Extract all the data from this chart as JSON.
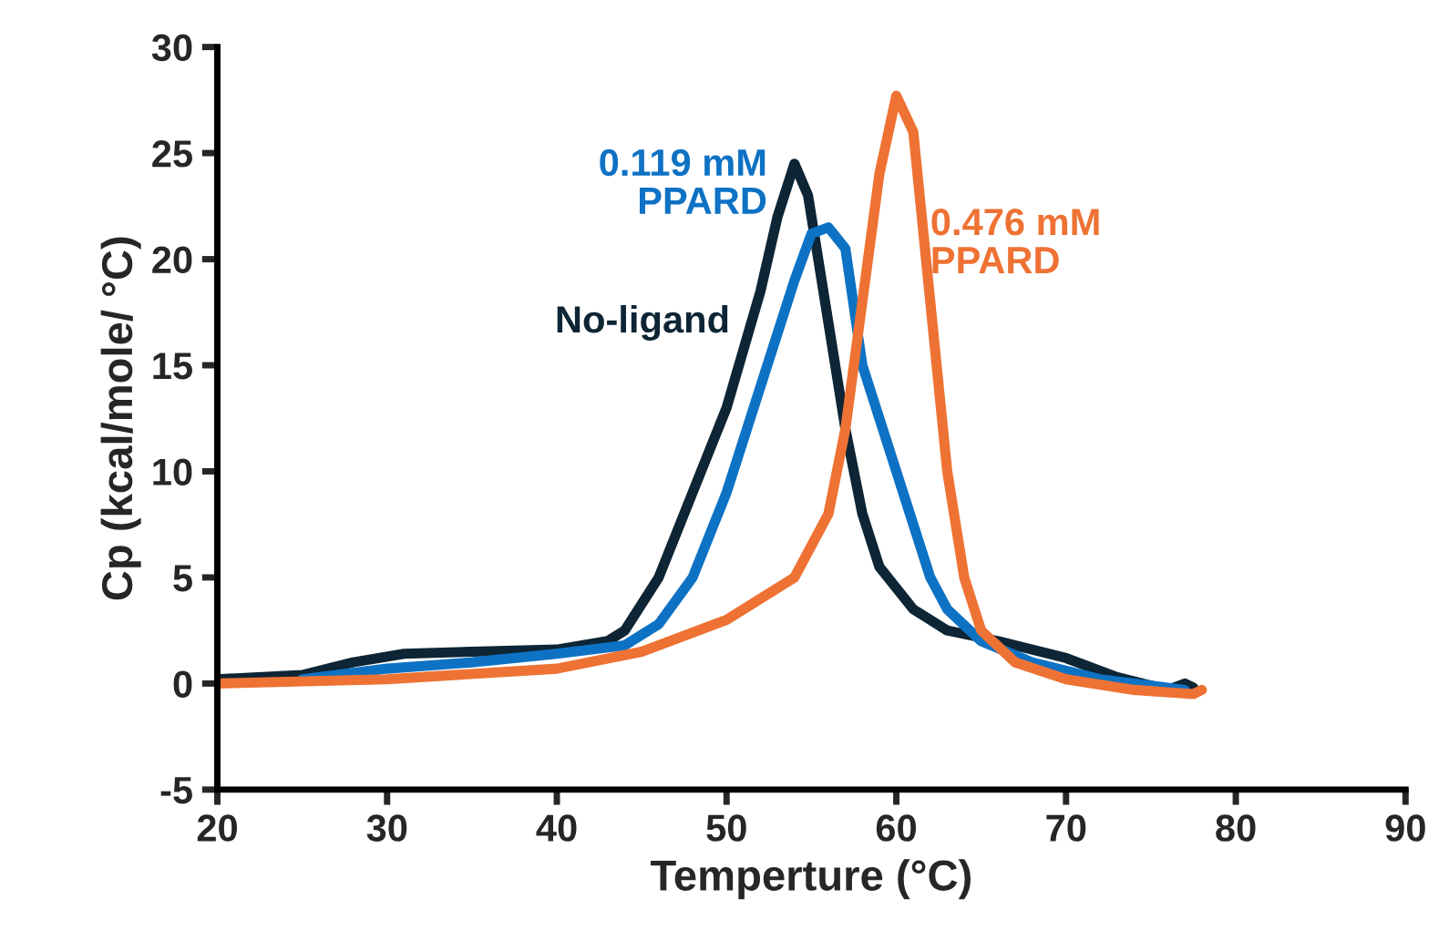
{
  "chart_data": {
    "type": "line",
    "xlabel": "Temperture (°C)",
    "ylabel": "Cp (kcal/mole/ °C)",
    "xlim": [
      20,
      90
    ],
    "xticks": [
      20,
      30,
      40,
      50,
      60,
      70,
      80,
      90
    ],
    "ylim": [
      -5,
      30
    ],
    "yticks": [
      -5,
      0,
      5,
      10,
      15,
      20,
      25,
      30
    ],
    "grid": false,
    "legend": false,
    "marker": "none",
    "line_style": "solid",
    "series": [
      {
        "name": "No-ligand",
        "color": "#0d2535",
        "x": [
          20,
          25,
          28,
          31,
          35,
          40,
          43,
          44,
          46,
          48,
          50,
          52,
          53,
          54,
          54.8,
          56,
          57,
          58,
          59,
          61,
          63,
          66,
          70,
          73,
          76,
          77,
          77.5
        ],
        "values": [
          0.2,
          0.4,
          1.0,
          1.4,
          1.5,
          1.6,
          2.0,
          2.5,
          5,
          9,
          13,
          18.5,
          22,
          24.5,
          23,
          17,
          12,
          8,
          5.5,
          3.5,
          2.5,
          2,
          1.2,
          0.3,
          -0.3,
          0,
          -0.2
        ]
      },
      {
        "name": "0.119 mM\nPPARD",
        "color": "#0e72c4",
        "x": [
          25,
          30,
          35,
          40,
          44,
          46,
          48,
          50,
          52,
          54,
          55,
          56,
          57,
          58,
          60,
          62,
          63,
          65,
          68,
          72,
          77
        ],
        "values": [
          0.2,
          0.7,
          1.0,
          1.4,
          1.8,
          2.8,
          5,
          9,
          14,
          19,
          21.2,
          21.5,
          20.5,
          15,
          10,
          5,
          3.5,
          2,
          1,
          0.2,
          -0.3
        ]
      },
      {
        "name": "0.476 mM\nPPARD",
        "color": "#ee7233",
        "x": [
          20,
          30,
          40,
          45,
          50,
          54,
          56,
          57,
          58,
          59,
          60,
          61,
          62,
          63,
          64,
          65,
          67,
          70,
          74,
          77.5,
          78
        ],
        "values": [
          0,
          0.2,
          0.7,
          1.5,
          3,
          5,
          8,
          12,
          18,
          24,
          27.7,
          26,
          18,
          10,
          5,
          2.5,
          1,
          0.2,
          -0.3,
          -0.5,
          -0.3
        ]
      }
    ]
  }
}
